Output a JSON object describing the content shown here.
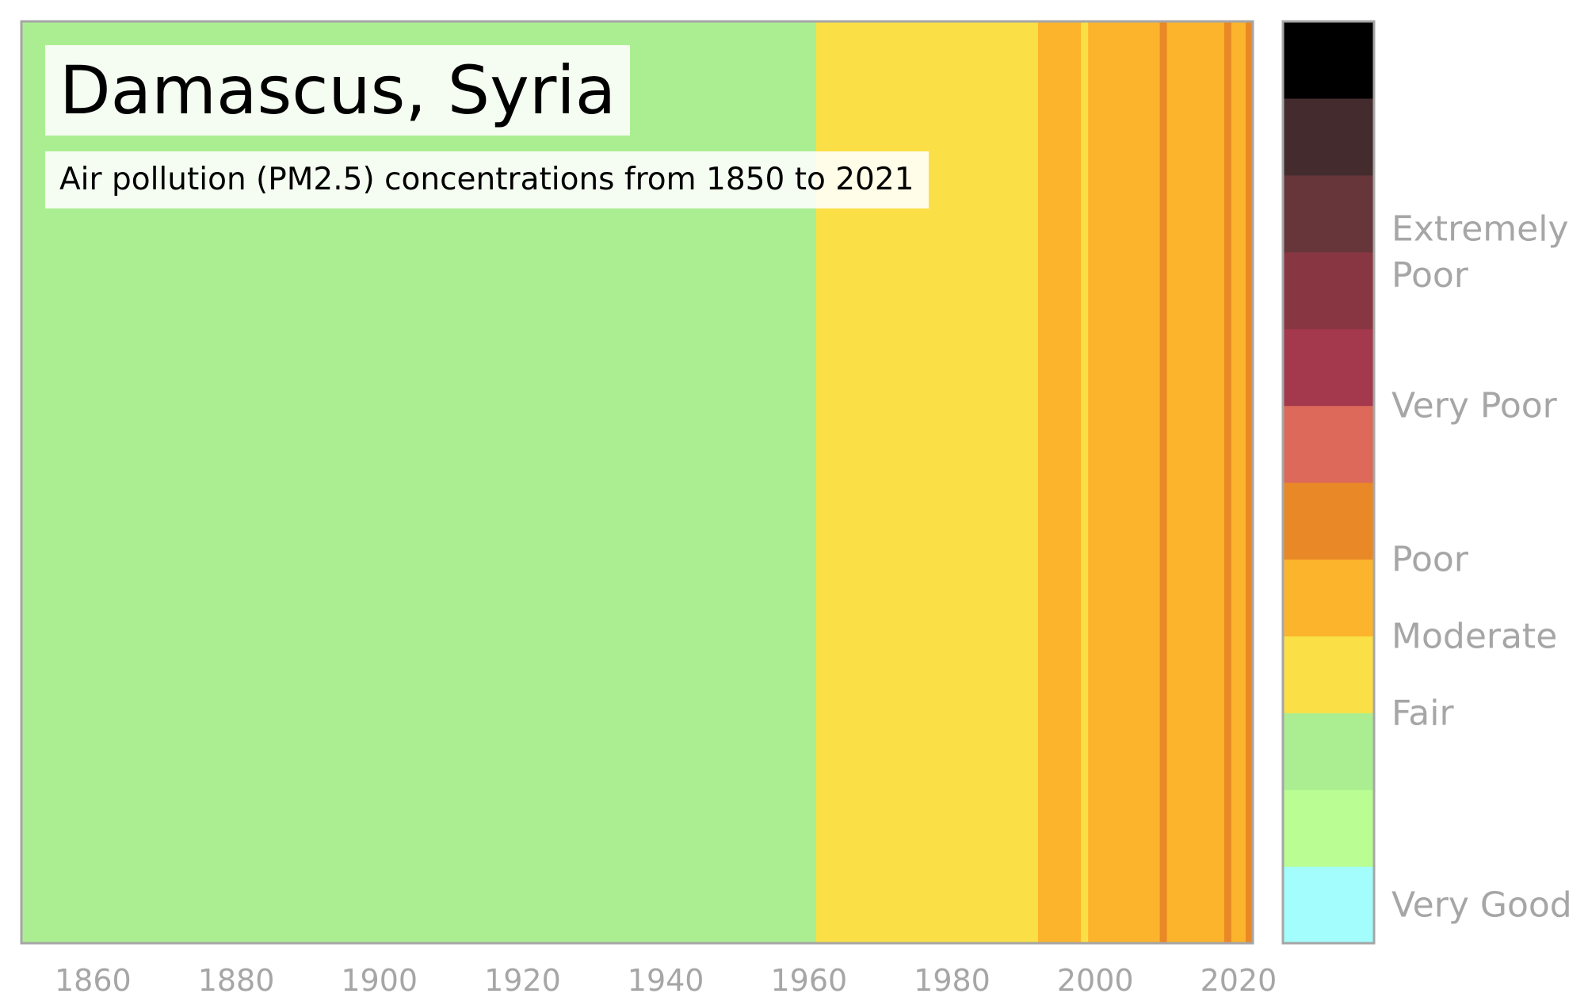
{
  "chart_data": {
    "type": "heatmap",
    "title": "Damascus, Syria",
    "subtitle": "Air pollution (PM2.5) concentrations from 1850 to 2021",
    "xlim": [
      1850,
      2022
    ],
    "x_ticks": [
      "1860",
      "1880",
      "1900",
      "1920",
      "1940",
      "1960",
      "1980",
      "2000",
      "2020"
    ],
    "x_tick_values": [
      1860,
      1880,
      1900,
      1920,
      1940,
      1960,
      1980,
      2000,
      2020
    ],
    "stripes": [
      {
        "start": 1850,
        "end": 1961,
        "category": "Fair",
        "color": "#abee92"
      },
      {
        "start": 1961,
        "end": 1992,
        "category": "Moderate",
        "color": "#fae046"
      },
      {
        "start": 1992,
        "end": 1998,
        "category": "Poor",
        "color": "#fcb42c"
      },
      {
        "start": 1998,
        "end": 1999,
        "category": "Moderate",
        "color": "#fae046"
      },
      {
        "start": 1999,
        "end": 2009,
        "category": "Poor",
        "color": "#fcb42c"
      },
      {
        "start": 2009,
        "end": 2010,
        "category": "Poor",
        "color": "#e98826"
      },
      {
        "start": 2010,
        "end": 2018,
        "category": "Poor",
        "color": "#fcb42c"
      },
      {
        "start": 2018,
        "end": 2019,
        "category": "Poor",
        "color": "#e98826"
      },
      {
        "start": 2019,
        "end": 2021,
        "category": "Poor",
        "color": "#fcb42c"
      },
      {
        "start": 2021,
        "end": 2022,
        "category": "Poor",
        "color": "#e98826"
      }
    ],
    "legend": {
      "placement": "right",
      "colors": [
        "#a2fdfc",
        "#b9fd93",
        "#abee92",
        "#fae046",
        "#fcb42c",
        "#e98826",
        "#dc6959",
        "#a4384d",
        "#883742",
        "#67363a",
        "#442c2e",
        "#000000"
      ],
      "labels": [
        {
          "text": "Very Good",
          "level": 0.5
        },
        {
          "text": "Fair",
          "level": 3.0
        },
        {
          "text": "Moderate",
          "level": 4.0
        },
        {
          "text": "Poor",
          "level": 5.0
        },
        {
          "text": "Very Poor",
          "level": 7.0
        },
        {
          "text": "Extremely",
          "level": 9.3
        },
        {
          "text": "Poor",
          "level": 8.7
        }
      ]
    },
    "frame_color": "#a6a6a6",
    "label_color": "#a6a6a6"
  }
}
